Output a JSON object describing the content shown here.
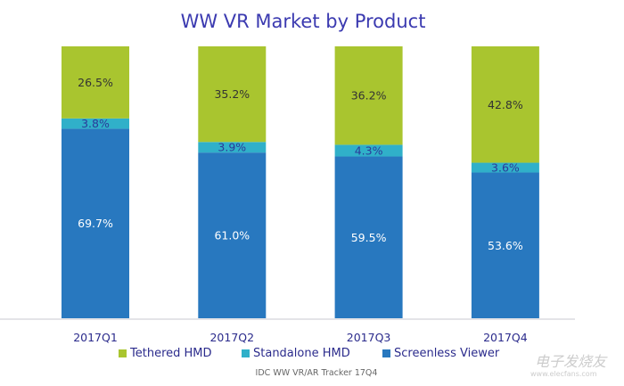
{
  "chart_data": {
    "type": "bar",
    "stacked": true,
    "title": "WW VR Market by Product",
    "categories": [
      "2017Q1",
      "2017Q2",
      "2017Q3",
      "2017Q4"
    ],
    "series": [
      {
        "name": "Screenless Viewer",
        "color": "#2878bf",
        "values": [
          69.7,
          61.0,
          59.5,
          53.6
        ],
        "labels": [
          "69.7%",
          "61.0%",
          "59.5%",
          "53.6%"
        ]
      },
      {
        "name": "Standalone HMD",
        "color": "#30b0c9",
        "values": [
          3.8,
          3.9,
          4.3,
          3.6
        ],
        "labels": [
          "3.8%",
          "3.9%",
          "4.3%",
          "3.6%"
        ]
      },
      {
        "name": "Tethered HMD",
        "color": "#a9c52f",
        "values": [
          26.5,
          35.2,
          36.2,
          42.8
        ],
        "labels": [
          "26.5%",
          "35.2%",
          "36.2%",
          "42.8%"
        ]
      }
    ],
    "ylim": [
      0,
      100
    ],
    "grid": false,
    "legend_position": "bottom",
    "source": "IDC WW VR/AR Tracker 17Q4"
  },
  "watermark": {
    "text": "电子发烧友",
    "url": "www.elecfans.com"
  }
}
